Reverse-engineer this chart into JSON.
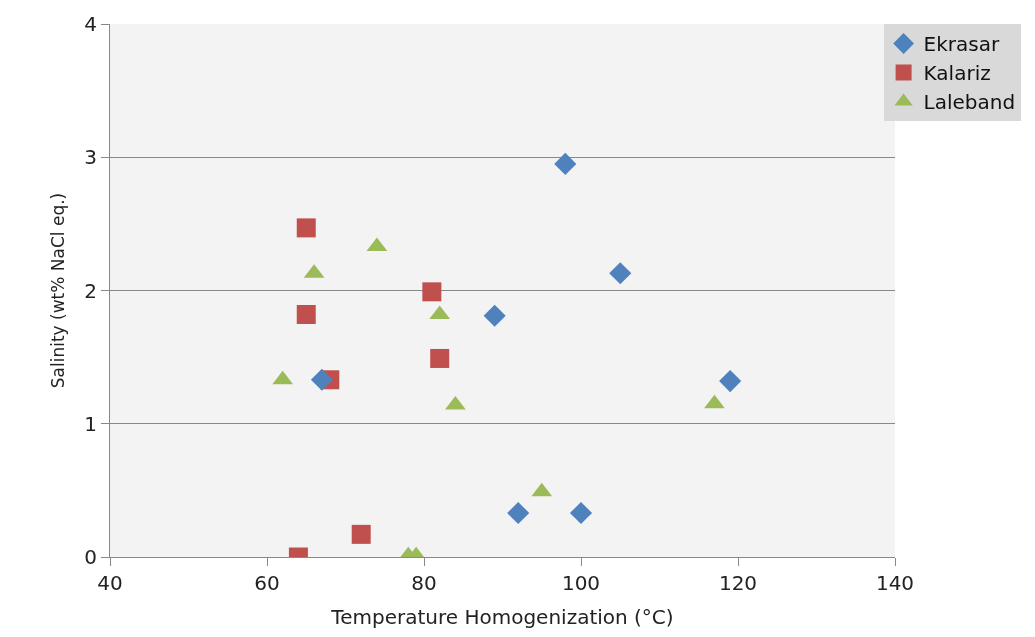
{
  "chart_data": {
    "type": "scatter",
    "xlabel": "Temperature Homogenization (°C)",
    "ylabel": "Salinity (wt% NaCl eq.)",
    "xlim": [
      40,
      140
    ],
    "xticks": [
      40,
      60,
      80,
      100,
      120,
      140
    ],
    "ylim": [
      0,
      4
    ],
    "yticks": [
      0,
      1,
      2,
      3,
      4
    ],
    "grid": "y",
    "legend": "top right",
    "series": [
      {
        "name": "Ekrasar",
        "color": "#4f81bd",
        "marker": "diamond",
        "x": [
          98,
          105,
          89,
          119,
          92,
          100,
          67
        ],
        "values": [
          2.95,
          2.13,
          1.81,
          1.32,
          0.33,
          0.33,
          1.33
        ]
      },
      {
        "name": "Kalariz",
        "color": "#c0504d",
        "marker": "square",
        "x": [
          65,
          65,
          68,
          81,
          82,
          72,
          64
        ],
        "values": [
          2.47,
          1.82,
          1.33,
          1.99,
          1.49,
          0.17,
          0
        ]
      },
      {
        "name": "Laleband",
        "color": "#9bbb59",
        "marker": "triangle",
        "x": [
          62,
          66,
          74,
          82,
          84,
          95,
          117,
          78,
          79
        ],
        "values": [
          1.33,
          2.13,
          2.33,
          1.82,
          1.14,
          0.49,
          1.15,
          0.01,
          0.01
        ]
      }
    ]
  }
}
